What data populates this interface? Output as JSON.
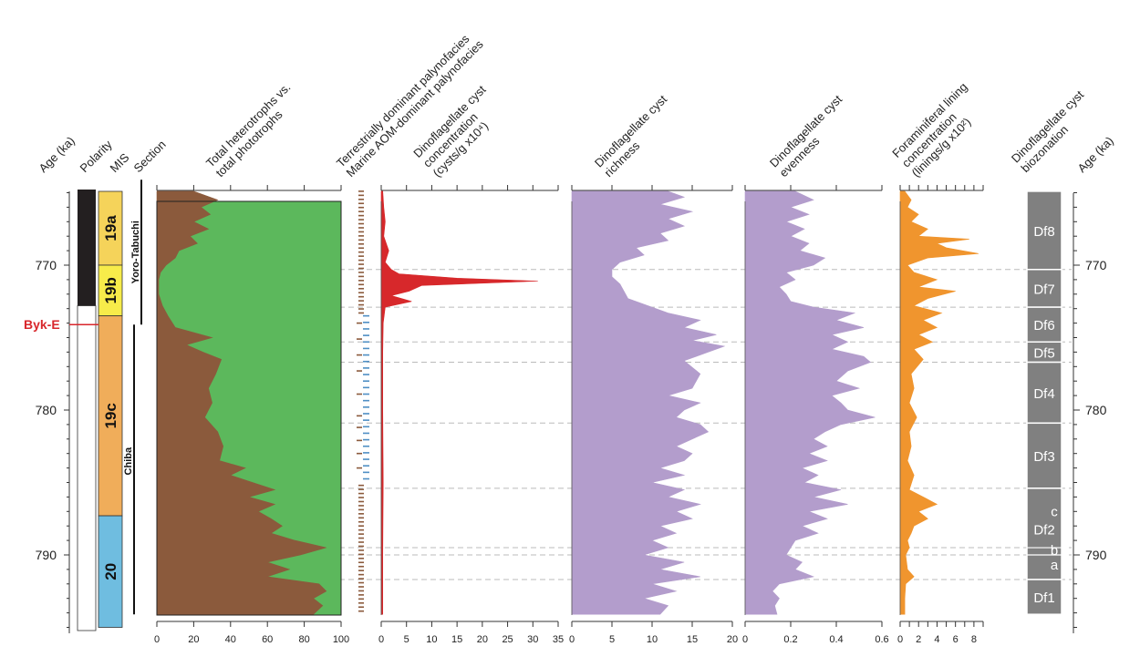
{
  "chart_data": {
    "type": "area",
    "title": "",
    "age_axis": {
      "label": "Age (ka)",
      "range": [
        764,
        795
      ],
      "ticks": [
        770,
        780,
        790
      ]
    },
    "column_headers": {
      "age_left": "Age (ka)",
      "polarity": "Polarity",
      "mis": "MIS",
      "section": "Section",
      "biozonation_line1": "Dinoflagellate cyst",
      "biozonation_line2": "biozonation",
      "age_right": "Age (ka)"
    },
    "polarity": {
      "reversal_age": 772.8,
      "colors": {
        "reversed_above": "#231f20",
        "normal_below": "#ffffff"
      }
    },
    "mis_stages": [
      {
        "label": "19a",
        "top": 764,
        "bottom": 770,
        "color": "#f5d35a"
      },
      {
        "label": "19b",
        "top": 770,
        "bottom": 773.5,
        "color": "#f7ec4a"
      },
      {
        "label": "19c",
        "top": 773.5,
        "bottom": 787.3,
        "color": "#f0ad5a"
      },
      {
        "label": "20",
        "top": 787.3,
        "bottom": 795,
        "color": "#6fbde0"
      }
    ],
    "sections": [
      {
        "label": "Yoro-Tabuchi",
        "top": 764.1,
        "bottom": 774.1
      },
      {
        "label": "Chiba",
        "top": 774.1,
        "bottom": 794.1
      }
    ],
    "event_marker": {
      "label": "Byk-E",
      "age": 774.1,
      "color": "#d8262b"
    },
    "dashed_boundaries": [
      770.3,
      772.9,
      775.3,
      776.7,
      780.9,
      785.4,
      789.5,
      790.0,
      791.7
    ],
    "panels": [
      {
        "id": "heterotrophs",
        "title_lines": [
          "Total heterotrophs vs.",
          "total phototrophs"
        ],
        "xlim": [
          0,
          100
        ],
        "xticks": [
          0,
          20,
          40,
          60,
          80,
          100
        ],
        "fill_color": "#8b5a3c",
        "background_color": "#5cb85c",
        "points": [
          [
            764.9,
            20
          ],
          [
            765.5,
            33
          ],
          [
            766.0,
            24
          ],
          [
            766.5,
            29
          ],
          [
            767.0,
            20
          ],
          [
            767.5,
            28
          ],
          [
            768.0,
            18
          ],
          [
            768.5,
            22
          ],
          [
            769.0,
            12
          ],
          [
            769.5,
            10
          ],
          [
            770.0,
            5
          ],
          [
            770.5,
            2
          ],
          [
            771.0,
            1
          ],
          [
            772.0,
            1
          ],
          [
            772.8,
            3
          ],
          [
            773.5,
            6
          ],
          [
            774.3,
            10
          ],
          [
            775.0,
            30
          ],
          [
            775.5,
            16
          ],
          [
            776.0,
            25
          ],
          [
            776.5,
            35
          ],
          [
            777.5,
            32
          ],
          [
            778.5,
            28
          ],
          [
            779.5,
            30
          ],
          [
            780.5,
            26
          ],
          [
            781.5,
            33
          ],
          [
            782.5,
            36
          ],
          [
            783.5,
            34
          ],
          [
            784.0,
            48
          ],
          [
            784.5,
            40
          ],
          [
            785.0,
            52
          ],
          [
            785.5,
            64
          ],
          [
            786.0,
            50
          ],
          [
            786.5,
            64
          ],
          [
            787.0,
            55
          ],
          [
            787.5,
            62
          ],
          [
            788.0,
            68
          ],
          [
            788.5,
            62
          ],
          [
            789.0,
            75
          ],
          [
            789.5,
            92
          ],
          [
            790.0,
            78
          ],
          [
            790.5,
            60
          ],
          [
            791.0,
            72
          ],
          [
            791.5,
            60
          ],
          [
            792.0,
            88
          ],
          [
            792.5,
            92
          ],
          [
            793.0,
            85
          ],
          [
            793.5,
            90
          ],
          [
            794.1,
            85
          ]
        ]
      },
      {
        "id": "palynofacies",
        "legend_lines": [
          "Terrestrially dominant palynofacies",
          "Marine AOM-dominant palynofacies"
        ],
        "terrestrial_color": "#8b5a3c",
        "marine_color": "#4f8fc4",
        "terrestrial_ranges": [
          [
            764.9,
            773.3
          ],
          [
            785.2,
            794.1
          ]
        ],
        "terrestrial_scattered": [
          774.0,
          775.1,
          776.2,
          777.3,
          778.9,
          780.4,
          781.2,
          782.1,
          783.0,
          784.0
        ],
        "marine_ranges": [
          [
            773.5,
            785.0
          ]
        ]
      },
      {
        "id": "dino_concentration",
        "title_lines": [
          "Dinoflagellate cyst",
          "concentration",
          "(cysts/g x10⁴)"
        ],
        "xlim": [
          0,
          35
        ],
        "xticks": [
          0,
          5,
          10,
          15,
          20,
          25,
          30,
          35
        ],
        "fill_color": "#d7282b",
        "points": [
          [
            764.9,
            0.3
          ],
          [
            766.0,
            0.5
          ],
          [
            767.0,
            0.8
          ],
          [
            768.0,
            0.5
          ],
          [
            769.0,
            1.5
          ],
          [
            769.8,
            0.8
          ],
          [
            770.3,
            2.0
          ],
          [
            770.6,
            3.5
          ],
          [
            770.9,
            15.0
          ],
          [
            771.1,
            31.0
          ],
          [
            771.4,
            8.0
          ],
          [
            771.8,
            5.5
          ],
          [
            772.1,
            2.0
          ],
          [
            772.5,
            6.0
          ],
          [
            772.9,
            0.8
          ],
          [
            774.0,
            0.4
          ],
          [
            776.0,
            0.3
          ],
          [
            780.0,
            0.3
          ],
          [
            785.0,
            0.4
          ],
          [
            790.0,
            0.3
          ],
          [
            794.1,
            0.3
          ]
        ]
      },
      {
        "id": "dino_richness",
        "title_lines": [
          "Dinoflagellate cyst",
          "richness"
        ],
        "xlim": [
          0,
          20
        ],
        "xticks": [
          0,
          5,
          10,
          15,
          20
        ],
        "fill_color": "#b39dcc",
        "points": [
          [
            764.9,
            12
          ],
          [
            765.3,
            14
          ],
          [
            765.8,
            11
          ],
          [
            766.3,
            15
          ],
          [
            766.8,
            12
          ],
          [
            767.3,
            14
          ],
          [
            767.8,
            11
          ],
          [
            768.3,
            12
          ],
          [
            768.8,
            8
          ],
          [
            769.3,
            9
          ],
          [
            769.8,
            6
          ],
          [
            770.3,
            5
          ],
          [
            770.8,
            5
          ],
          [
            771.3,
            6
          ],
          [
            771.8,
            6.5
          ],
          [
            772.3,
            7
          ],
          [
            772.9,
            10
          ],
          [
            773.3,
            12
          ],
          [
            773.8,
            16
          ],
          [
            774.3,
            14
          ],
          [
            774.8,
            18
          ],
          [
            775.2,
            15
          ],
          [
            775.6,
            19
          ],
          [
            776.0,
            17
          ],
          [
            776.6,
            14
          ],
          [
            777.5,
            16
          ],
          [
            778.5,
            15
          ],
          [
            779.0,
            12
          ],
          [
            779.5,
            16
          ],
          [
            780.0,
            14
          ],
          [
            780.5,
            13
          ],
          [
            781.0,
            16
          ],
          [
            781.5,
            17
          ],
          [
            782.0,
            15
          ],
          [
            782.5,
            13
          ],
          [
            783.0,
            15
          ],
          [
            783.5,
            14
          ],
          [
            784.0,
            11
          ],
          [
            784.5,
            14
          ],
          [
            785.0,
            10
          ],
          [
            785.5,
            14
          ],
          [
            786.0,
            12
          ],
          [
            786.5,
            16
          ],
          [
            787.0,
            13
          ],
          [
            787.5,
            15
          ],
          [
            788.0,
            11
          ],
          [
            788.5,
            13
          ],
          [
            789.0,
            10
          ],
          [
            789.5,
            12
          ],
          [
            790.0,
            9
          ],
          [
            790.5,
            14
          ],
          [
            791.0,
            11
          ],
          [
            791.5,
            16
          ],
          [
            792.0,
            10
          ],
          [
            792.5,
            13
          ],
          [
            793.0,
            9
          ],
          [
            793.5,
            12
          ],
          [
            794.1,
            11
          ]
        ]
      },
      {
        "id": "dino_evenness",
        "title_lines": [
          "Dinoflagellate cyst",
          "evenness"
        ],
        "xlim": [
          0,
          0.6
        ],
        "xticks": [
          0,
          0.2,
          0.4,
          0.6
        ],
        "tick_labels": [
          "0",
          "0.2",
          "0.4",
          "0.6"
        ],
        "fill_color": "#b39dcc",
        "points": [
          [
            764.9,
            0.22
          ],
          [
            765.5,
            0.3
          ],
          [
            766.0,
            0.2
          ],
          [
            766.5,
            0.28
          ],
          [
            767.0,
            0.18
          ],
          [
            767.5,
            0.26
          ],
          [
            768.0,
            0.2
          ],
          [
            768.5,
            0.28
          ],
          [
            769.0,
            0.24
          ],
          [
            769.5,
            0.35
          ],
          [
            770.0,
            0.3
          ],
          [
            770.5,
            0.18
          ],
          [
            771.0,
            0.22
          ],
          [
            771.5,
            0.15
          ],
          [
            772.0,
            0.18
          ],
          [
            772.5,
            0.2
          ],
          [
            772.9,
            0.3
          ],
          [
            773.3,
            0.48
          ],
          [
            773.8,
            0.4
          ],
          [
            774.3,
            0.52
          ],
          [
            774.8,
            0.38
          ],
          [
            775.3,
            0.45
          ],
          [
            775.8,
            0.38
          ],
          [
            776.3,
            0.52
          ],
          [
            776.7,
            0.55
          ],
          [
            777.3,
            0.45
          ],
          [
            778.0,
            0.4
          ],
          [
            778.5,
            0.5
          ],
          [
            779.0,
            0.38
          ],
          [
            779.5,
            0.42
          ],
          [
            780.0,
            0.45
          ],
          [
            780.5,
            0.57
          ],
          [
            781.0,
            0.42
          ],
          [
            781.5,
            0.35
          ],
          [
            782.0,
            0.3
          ],
          [
            782.5,
            0.36
          ],
          [
            783.0,
            0.28
          ],
          [
            783.5,
            0.36
          ],
          [
            784.0,
            0.25
          ],
          [
            784.5,
            0.32
          ],
          [
            785.0,
            0.26
          ],
          [
            785.5,
            0.42
          ],
          [
            786.0,
            0.3
          ],
          [
            786.5,
            0.45
          ],
          [
            787.0,
            0.28
          ],
          [
            787.5,
            0.36
          ],
          [
            788.0,
            0.25
          ],
          [
            788.5,
            0.32
          ],
          [
            789.0,
            0.22
          ],
          [
            789.5,
            0.2
          ],
          [
            790.0,
            0.18
          ],
          [
            790.5,
            0.25
          ],
          [
            791.0,
            0.22
          ],
          [
            791.5,
            0.3
          ],
          [
            792.0,
            0.15
          ],
          [
            792.5,
            0.12
          ],
          [
            793.0,
            0.15
          ],
          [
            793.5,
            0.13
          ],
          [
            794.1,
            0.14
          ]
        ]
      },
      {
        "id": "foram_lining",
        "title_lines": [
          "Foraminiferal lining",
          "concentration",
          "(linings/g x10²)"
        ],
        "xlim": [
          0,
          9
        ],
        "xticks": [
          0,
          1,
          2,
          3,
          4,
          5,
          6,
          7,
          8,
          9
        ],
        "tick_labels": [
          "0",
          "",
          "2",
          "",
          "4",
          "",
          "6",
          "",
          "8",
          ""
        ],
        "fill_color": "#f0952e",
        "points": [
          [
            764.9,
            0.5
          ],
          [
            765.5,
            1.2
          ],
          [
            766.0,
            0.8
          ],
          [
            766.5,
            2.0
          ],
          [
            767.0,
            1.2
          ],
          [
            767.5,
            3.0
          ],
          [
            768.0,
            2.0
          ],
          [
            768.2,
            7.5
          ],
          [
            768.5,
            4.0
          ],
          [
            768.8,
            5.0
          ],
          [
            769.2,
            8.5
          ],
          [
            769.5,
            3.0
          ],
          [
            770.0,
            0.8
          ],
          [
            770.5,
            1.5
          ],
          [
            771.0,
            4.0
          ],
          [
            771.5,
            2.0
          ],
          [
            771.8,
            6.0
          ],
          [
            772.3,
            3.0
          ],
          [
            772.8,
            1.5
          ],
          [
            773.3,
            4.5
          ],
          [
            773.8,
            2.5
          ],
          [
            774.3,
            4.0
          ],
          [
            774.8,
            2.0
          ],
          [
            775.3,
            3.5
          ],
          [
            775.8,
            1.5
          ],
          [
            776.5,
            2.5
          ],
          [
            777.5,
            1.2
          ],
          [
            778.5,
            1.5
          ],
          [
            779.5,
            1.0
          ],
          [
            780.5,
            1.8
          ],
          [
            781.5,
            1.0
          ],
          [
            782.5,
            1.2
          ],
          [
            783.5,
            0.8
          ],
          [
            784.5,
            1.5
          ],
          [
            785.5,
            1.0
          ],
          [
            786.0,
            2.5
          ],
          [
            786.5,
            4.0
          ],
          [
            787.0,
            2.0
          ],
          [
            787.5,
            3.0
          ],
          [
            788.0,
            1.5
          ],
          [
            788.5,
            1.2
          ],
          [
            789.0,
            0.8
          ],
          [
            789.5,
            1.0
          ],
          [
            790.0,
            0.6
          ],
          [
            791.0,
            0.8
          ],
          [
            791.5,
            1.5
          ],
          [
            792.0,
            0.6
          ],
          [
            793.0,
            0.5
          ],
          [
            794.1,
            0.5
          ]
        ]
      }
    ],
    "biozones": [
      {
        "label": "Df8",
        "top": 764.9,
        "bottom": 770.3
      },
      {
        "label": "Df7",
        "top": 770.3,
        "bottom": 772.9
      },
      {
        "label": "Df6",
        "top": 772.9,
        "bottom": 775.3
      },
      {
        "label": "Df5",
        "top": 775.3,
        "bottom": 776.7
      },
      {
        "label": "Df4",
        "top": 776.7,
        "bottom": 780.9
      },
      {
        "label": "Df3",
        "top": 780.9,
        "bottom": 785.4
      },
      {
        "label": "Df2",
        "top": 785.4,
        "bottom": 791.7
      },
      {
        "label": "Df1",
        "top": 791.7,
        "bottom": 794.1
      }
    ],
    "subzones": [
      {
        "label": "c",
        "age": 787.0
      },
      {
        "label": "b",
        "age": 789.7
      },
      {
        "label": "a",
        "age": 790.7
      }
    ],
    "biozone_color": "#808080"
  }
}
